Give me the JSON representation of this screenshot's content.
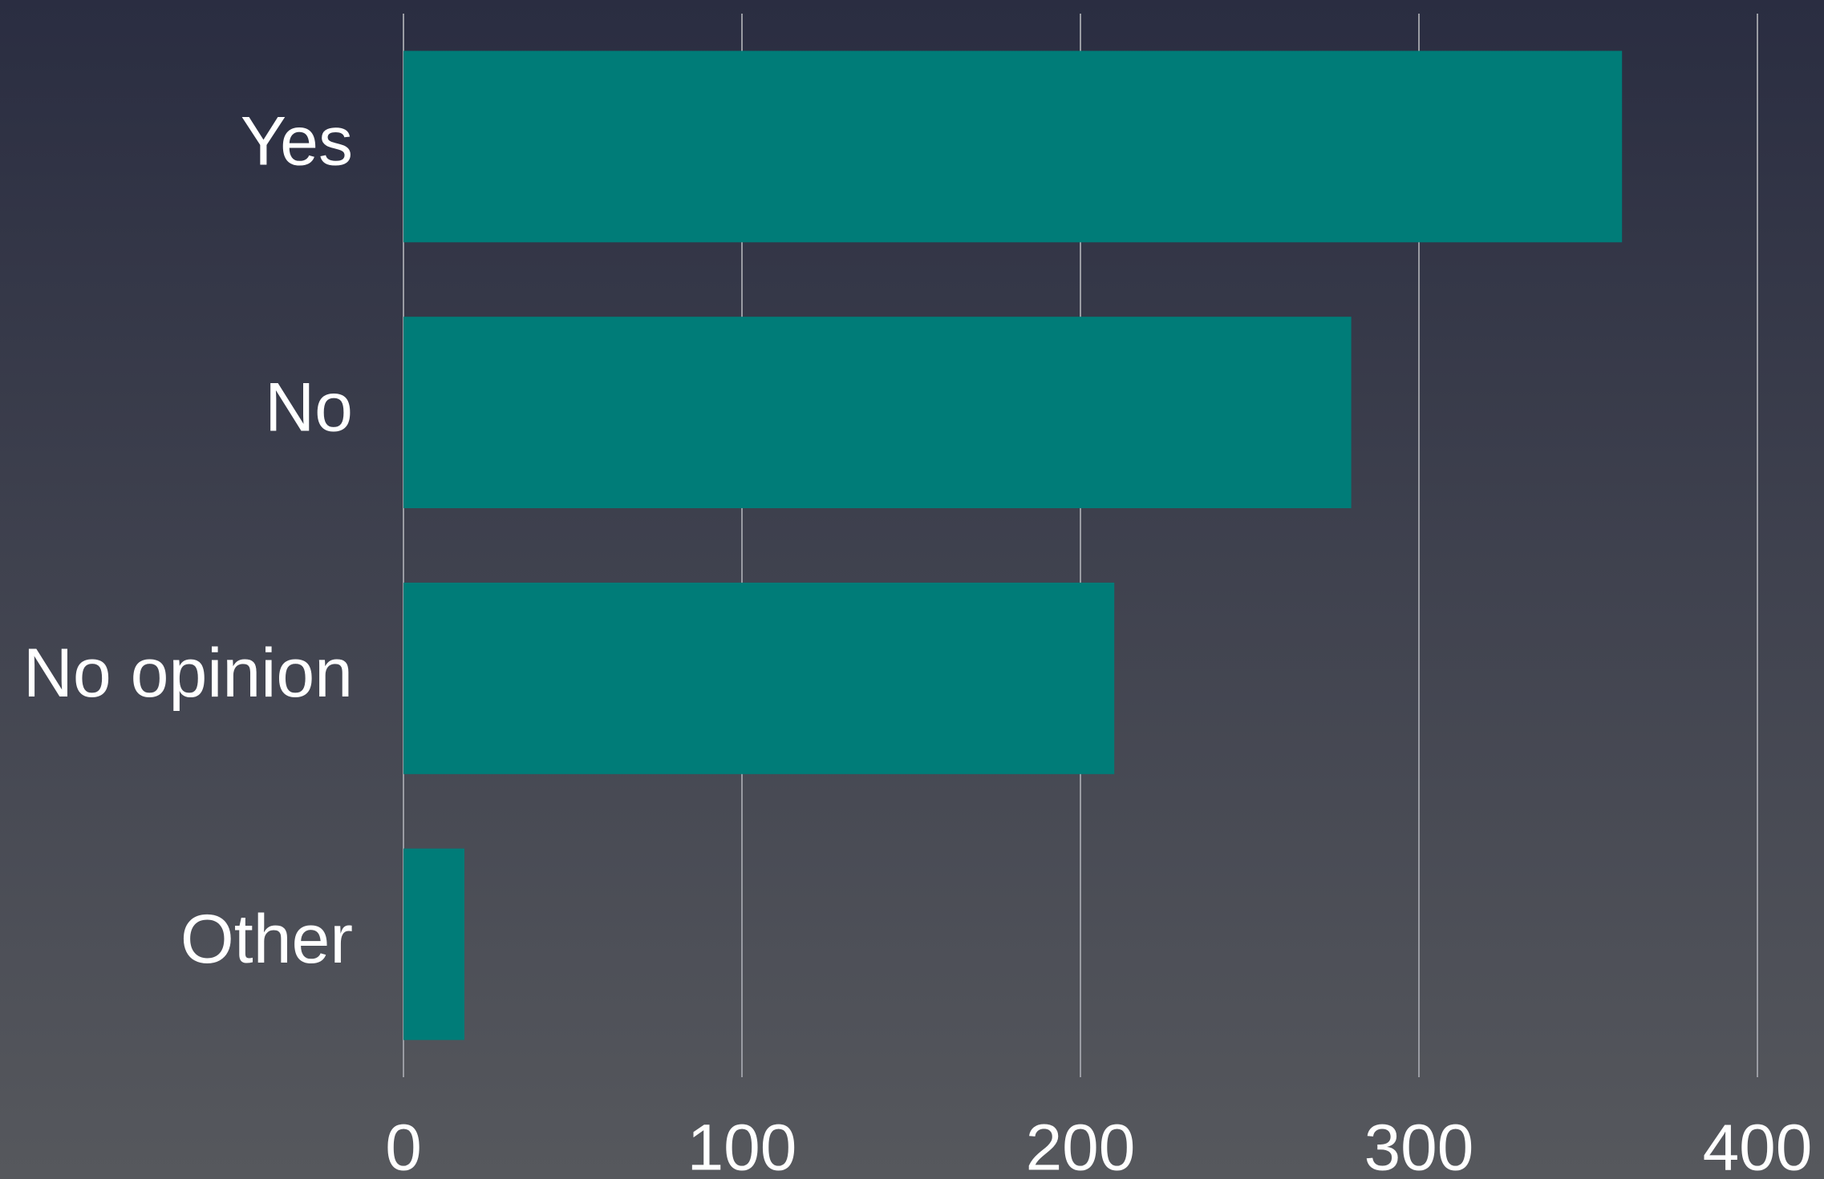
{
  "chart_data": {
    "type": "bar",
    "orientation": "horizontal",
    "categories": [
      "Yes",
      "No",
      "No opinion",
      "Other"
    ],
    "values": [
      360,
      280,
      210,
      18
    ],
    "color": "#007c78",
    "xlim": [
      0,
      400
    ],
    "xticks": [
      0,
      100,
      200,
      300,
      400
    ],
    "grid": true
  }
}
